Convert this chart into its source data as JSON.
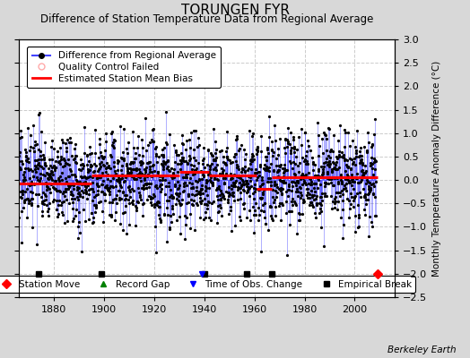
{
  "title": "TORUNGEN FYR",
  "subtitle": "Difference of Station Temperature Data from Regional Average",
  "ylabel": "Monthly Temperature Anomaly Difference (°C)",
  "xlim": [
    1866,
    2016
  ],
  "ylim": [
    -2.5,
    3.0
  ],
  "yticks": [
    -2.5,
    -2,
    -1.5,
    -1,
    -0.5,
    0,
    0.5,
    1,
    1.5,
    2,
    2.5,
    3
  ],
  "xticks": [
    1880,
    1900,
    1920,
    1940,
    1960,
    1980,
    2000
  ],
  "background_color": "#d8d8d8",
  "plot_background_color": "#ffffff",
  "line_color": "#4444ff",
  "dot_color": "#000000",
  "bias_color": "#ff0000",
  "grid_color": "#cccccc",
  "seed": 17,
  "n_points": 1700,
  "start_year": 1866.0,
  "end_year": 2008.5,
  "bias_segments": [
    {
      "start": 1866,
      "end": 1895,
      "value": -0.08
    },
    {
      "start": 1895,
      "end": 1930,
      "value": 0.1
    },
    {
      "start": 1930,
      "end": 1942,
      "value": 0.18
    },
    {
      "start": 1942,
      "end": 1961,
      "value": 0.1
    },
    {
      "start": 1961,
      "end": 1967,
      "value": -0.18
    },
    {
      "start": 1967,
      "end": 2009,
      "value": 0.05
    }
  ],
  "empirical_breaks": [
    1874,
    1899,
    1940,
    1957,
    1967
  ],
  "station_moves": [
    2009
  ],
  "time_obs_changes": [
    1939
  ],
  "record_gaps": [],
  "marker_y": -2.0,
  "watermark": "Berkeley Earth",
  "legend_fontsize": 7.5,
  "title_fontsize": 11,
  "subtitle_fontsize": 8.5
}
